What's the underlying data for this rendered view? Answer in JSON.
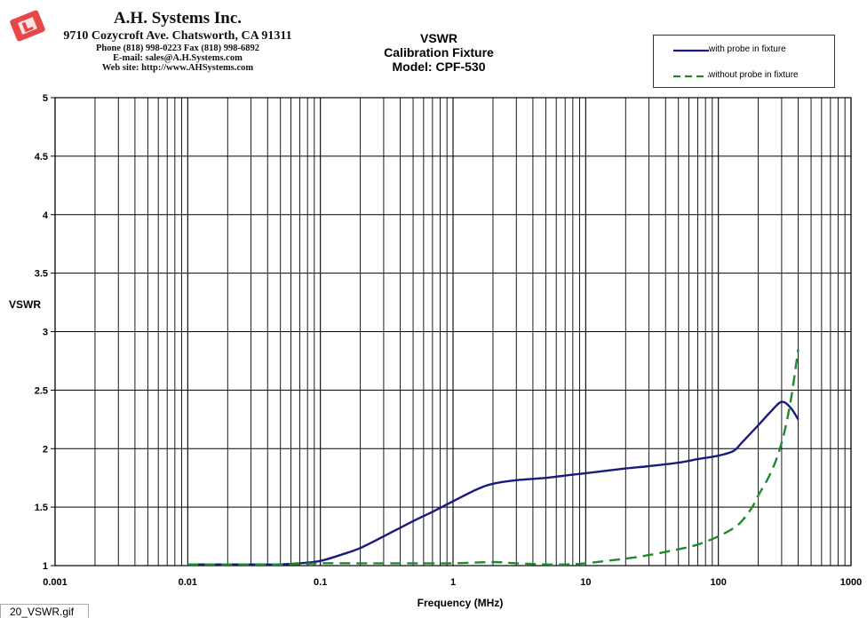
{
  "company": {
    "name": "A.H. Systems Inc.",
    "address": "9710 Cozycroft Ave. Chatsworth, CA 91311",
    "phone": "Phone (818) 998-0223 Fax (818) 998-6892",
    "email": "E-mail: sales@A.H.Systems.com",
    "website": "Web site: http://www.AHSystems.com"
  },
  "file_label": "20_VSWR.gif",
  "colors": {
    "series1": "#1a1a7e",
    "series2": "#1e8a2a",
    "logo": "#e6484a"
  },
  "chart_data": {
    "type": "line",
    "title": "VSWR",
    "subtitle": [
      "Calibration Fixture",
      "Model: CPF-530"
    ],
    "xlabel": "Frequency (MHz)",
    "ylabel": "VSWR",
    "xscale": "log",
    "xlim": [
      0.001,
      1000
    ],
    "ylim": [
      1,
      5
    ],
    "xticks": [
      "0.001",
      "0.01",
      "0.1",
      "1",
      "10",
      "100",
      "1000"
    ],
    "yticks": [
      "1",
      "1.5",
      "2",
      "2.5",
      "3",
      "3.5",
      "4",
      "4.5",
      "5"
    ],
    "grid": true,
    "legend_position": "top-right",
    "series": [
      {
        "name": "with probe in fixture",
        "style": "solid",
        "x": [
          0.01,
          0.02,
          0.03,
          0.05,
          0.07,
          0.1,
          0.15,
          0.2,
          0.3,
          0.5,
          0.7,
          1,
          1.5,
          2,
          3,
          5,
          7,
          10,
          20,
          30,
          50,
          70,
          100,
          130,
          150,
          200,
          250,
          300,
          350,
          400
        ],
        "y": [
          1.01,
          1.01,
          1.01,
          1.01,
          1.02,
          1.04,
          1.1,
          1.15,
          1.25,
          1.38,
          1.46,
          1.55,
          1.65,
          1.7,
          1.73,
          1.75,
          1.77,
          1.79,
          1.83,
          1.85,
          1.88,
          1.91,
          1.94,
          1.98,
          2.05,
          2.2,
          2.32,
          2.4,
          2.35,
          2.25
        ]
      },
      {
        "name": "without probe in fixture",
        "style": "dashed",
        "x": [
          0.01,
          0.02,
          0.05,
          0.1,
          0.2,
          0.5,
          1,
          2,
          3,
          5,
          7,
          10,
          20,
          30,
          50,
          70,
          100,
          130,
          150,
          180,
          200,
          250,
          300,
          350,
          400
        ],
        "y": [
          1.01,
          1.01,
          1.01,
          1.02,
          1.02,
          1.02,
          1.02,
          1.03,
          1.02,
          1.01,
          1.01,
          1.02,
          1.06,
          1.09,
          1.14,
          1.18,
          1.25,
          1.32,
          1.38,
          1.5,
          1.6,
          1.8,
          2.05,
          2.4,
          2.85
        ]
      }
    ]
  }
}
